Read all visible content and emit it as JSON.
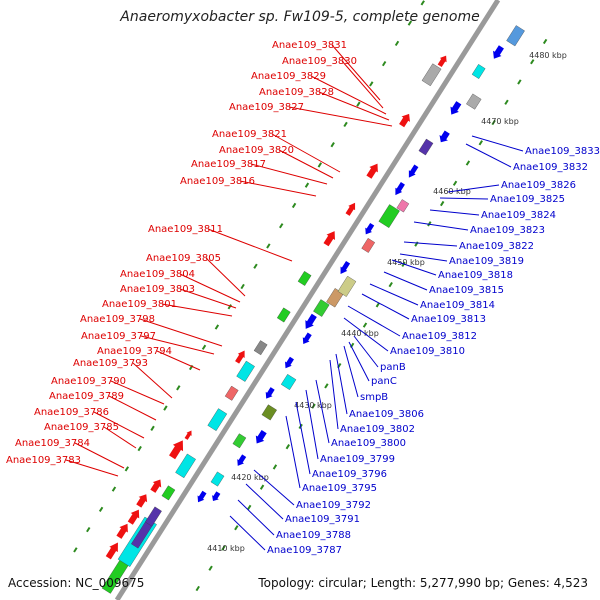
{
  "title": "Anaeromyxobacter sp. Fw109-5, complete genome",
  "accession": "Accession: NC_009675",
  "topology": "Topology: circular; Length: 5,277,990 bp; Genes: 4,523",
  "colors": {
    "forward_label": "#dd0000",
    "reverse_label": "#0000cc",
    "backbone": "#9a9a9a",
    "tick": "#2d8a1f"
  },
  "kbp_labels": [
    "4410 kbp",
    "4420 kbp",
    "4430 kbp",
    "4440 kbp",
    "4450 kbp",
    "4460 kbp",
    "4470 kbp",
    "4480 kbp"
  ],
  "forward_genes": [
    "Anae109_3831",
    "Anae109_3830",
    "Anae109_3829",
    "Anae109_3828",
    "Anae109_3827",
    "Anae109_3821",
    "Anae109_3820",
    "Anae109_3817",
    "Anae109_3816",
    "Anae109_3811",
    "Anae109_3805",
    "Anae109_3804",
    "Anae109_3803",
    "Anae109_3801",
    "Anae109_3798",
    "Anae109_3797",
    "Anae109_3794",
    "Anae109_3793",
    "Anae109_3790",
    "Anae109_3789",
    "Anae109_3786",
    "Anae109_3785",
    "Anae109_3784",
    "Anae109_3783"
  ],
  "reverse_genes": [
    "Anae109_3833",
    "Anae109_3832",
    "Anae109_3826",
    "Anae109_3825",
    "Anae109_3824",
    "Anae109_3823",
    "Anae109_3822",
    "Anae109_3819",
    "Anae109_3818",
    "Anae109_3815",
    "Anae109_3814",
    "Anae109_3813",
    "Anae109_3812",
    "Anae109_3810",
    "panB",
    "panC",
    "smpB",
    "Anae109_3806",
    "Anae109_3802",
    "Anae109_3800",
    "Anae109_3799",
    "Anae109_3796",
    "Anae109_3795",
    "Anae109_3792",
    "Anae109_3791",
    "Anae109_3788",
    "Anae109_3787"
  ]
}
